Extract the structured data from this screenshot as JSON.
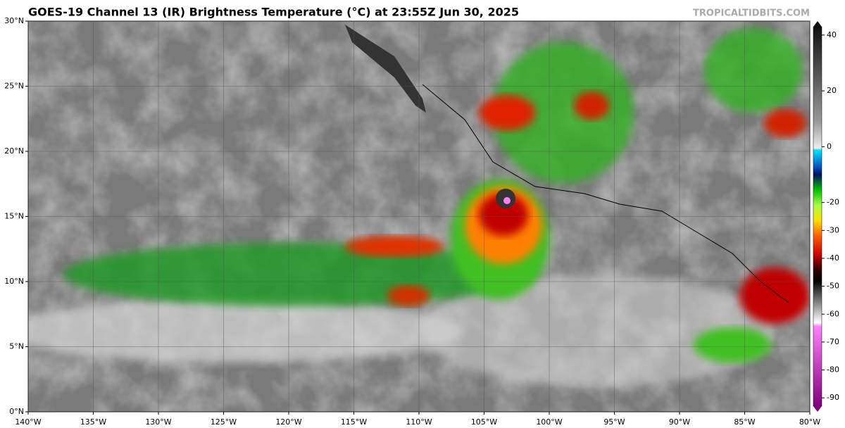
{
  "header": {
    "title": "GOES-19 Channel 13 (IR) Brightness Temperature (°C) at 23:55Z Jun 30, 2025",
    "watermark": "TROPICALTIDBITS.COM"
  },
  "map": {
    "lon_range": [
      -140,
      -80
    ],
    "lat_range": [
      0,
      30
    ],
    "lat_ticks": [
      {
        "value": 0,
        "label": "0°N"
      },
      {
        "value": 5,
        "label": "5°N"
      },
      {
        "value": 10,
        "label": "10°N"
      },
      {
        "value": 15,
        "label": "15°N"
      },
      {
        "value": 20,
        "label": "20°N"
      },
      {
        "value": 25,
        "label": "25°N"
      },
      {
        "value": 30,
        "label": "30°N"
      }
    ],
    "lon_ticks": [
      {
        "value": -140,
        "label": "140°W"
      },
      {
        "value": -135,
        "label": "135°W"
      },
      {
        "value": -130,
        "label": "130°W"
      },
      {
        "value": -125,
        "label": "125°W"
      },
      {
        "value": -120,
        "label": "120°W"
      },
      {
        "value": -115,
        "label": "115°W"
      },
      {
        "value": -110,
        "label": "110°W"
      },
      {
        "value": -105,
        "label": "105°W"
      },
      {
        "value": -100,
        "label": "100°W"
      },
      {
        "value": -95,
        "label": "95°W"
      },
      {
        "value": -90,
        "label": "90°W"
      },
      {
        "value": -85,
        "label": "85°W"
      },
      {
        "value": -80,
        "label": "80°W"
      }
    ]
  },
  "colorbar": {
    "range": [
      -95,
      45
    ],
    "ticks": [
      40,
      20,
      0,
      -20,
      -30,
      -40,
      -50,
      -60,
      -70,
      -80,
      -90
    ]
  }
}
